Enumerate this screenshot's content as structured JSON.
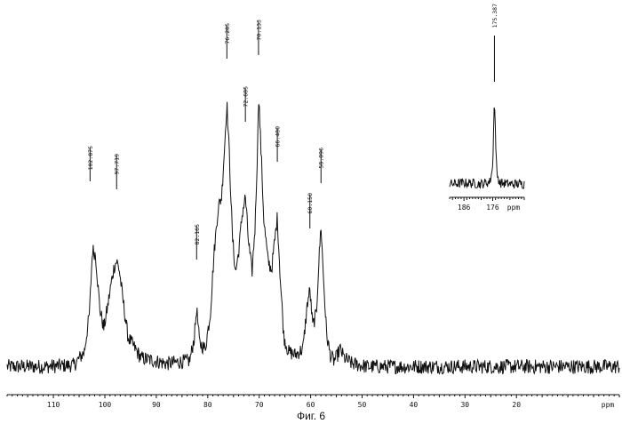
{
  "figure": {
    "caption": "Фиг. 6"
  },
  "chart_data": [
    {
      "type": "line",
      "title": "",
      "xlabel": "ppm",
      "ylabel": "",
      "xlim": [
        119,
        0
      ],
      "x_reversed": true,
      "xticks": [
        110,
        100,
        90,
        80,
        70,
        60,
        50,
        40,
        30,
        20
      ],
      "xtick_labels": [
        "110",
        "100",
        "90",
        "80",
        "70",
        "60",
        "50",
        "40",
        "30",
        "20"
      ],
      "ylim": [
        0,
        1
      ],
      "grid": false,
      "series": [
        {
          "values_description": "relative intensity (baseline 0, tallest peak ~1)",
          "x": [
            119,
            112,
            106,
            104,
            103,
            102.4,
            101.8,
            101,
            100.2,
            99.5,
            98.8,
            98.2,
            97.7,
            97.2,
            96.5,
            95.5,
            93,
            88,
            83.5,
            82.6,
            82.165,
            81.6,
            80.5,
            79.5,
            78.8,
            78,
            77.3,
            76.7,
            76.285,
            75.8,
            75.2,
            74.6,
            74,
            73.3,
            72.685,
            72.1,
            71.4,
            70.8,
            70.3,
            70.133,
            69.7,
            69.1,
            68.3,
            67.6,
            67.1,
            66.48,
            65.9,
            65.2,
            64.3,
            63,
            61.5,
            60.6,
            60.15,
            59.6,
            58.9,
            58.4,
            57.99,
            57.5,
            56.9,
            56.2,
            55.5,
            55,
            54.3,
            53.5,
            52,
            49,
            40,
            30,
            20,
            10,
            0
          ],
          "y": [
            0.02,
            0.02,
            0.025,
            0.07,
            0.2,
            0.42,
            0.4,
            0.22,
            0.15,
            0.22,
            0.3,
            0.36,
            0.38,
            0.35,
            0.25,
            0.12,
            0.05,
            0.03,
            0.04,
            0.12,
            0.22,
            0.1,
            0.08,
            0.2,
            0.4,
            0.56,
            0.6,
            0.78,
            0.92,
            0.74,
            0.46,
            0.34,
            0.41,
            0.54,
            0.6,
            0.45,
            0.34,
            0.5,
            0.78,
            0.96,
            0.78,
            0.52,
            0.38,
            0.35,
            0.43,
            0.53,
            0.32,
            0.12,
            0.07,
            0.06,
            0.08,
            0.24,
            0.28,
            0.16,
            0.2,
            0.38,
            0.5,
            0.32,
            0.13,
            0.06,
            0.04,
            0.05,
            0.08,
            0.05,
            0.03,
            0.02,
            0.02,
            0.02,
            0.02,
            0.02,
            0.02
          ]
        }
      ],
      "peak_labels": [
        {
          "x": 102.875,
          "label": "102.875"
        },
        {
          "x": 97.719,
          "label": "97.719"
        },
        {
          "x": 82.165,
          "label": "82.165"
        },
        {
          "x": 76.285,
          "label": "76.285"
        },
        {
          "x": 72.685,
          "label": "72.685"
        },
        {
          "x": 70.133,
          "label": "70.133"
        },
        {
          "x": 66.48,
          "label": "66.480"
        },
        {
          "x": 60.15,
          "label": "60.150"
        },
        {
          "x": 57.99,
          "label": "58.096"
        }
      ]
    },
    {
      "type": "line",
      "title": "",
      "inset": true,
      "xlabel": "ppm",
      "ylabel": "",
      "xlim": [
        191,
        165
      ],
      "x_reversed": true,
      "xticks": [
        186,
        176
      ],
      "xtick_labels": [
        "186",
        "176"
      ],
      "ylim": [
        0,
        1
      ],
      "grid": false,
      "series": [
        {
          "values_description": "relative intensity",
          "x": [
            191,
            185,
            180,
            177,
            176,
            175.6,
            175.387,
            175.1,
            174.6,
            173.5,
            170,
            165
          ],
          "y": [
            0.05,
            0.06,
            0.05,
            0.07,
            0.2,
            0.68,
            0.82,
            0.6,
            0.15,
            0.06,
            0.05,
            0.05
          ]
        }
      ],
      "peak_labels": [
        {
          "x": 175.387,
          "label": "175.387"
        }
      ]
    }
  ]
}
